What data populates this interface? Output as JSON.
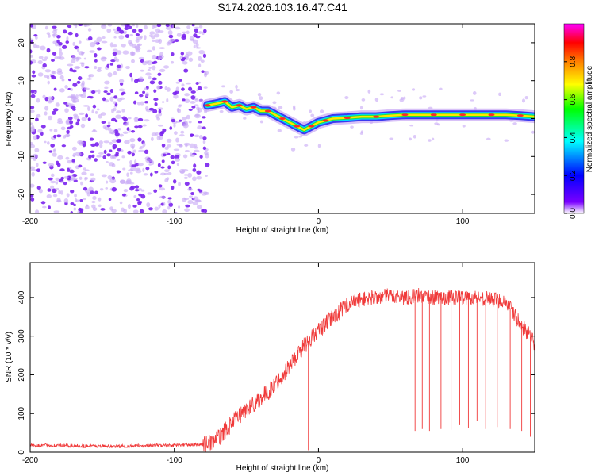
{
  "title": "S174.2026.103.16.47.C41",
  "colors": {
    "trace": "#f03a3a",
    "axis": "#000000",
    "speckle": "#7a22ee",
    "background": "#ffffff"
  },
  "chart_data": [
    {
      "type": "heatmap",
      "title": "",
      "xlabel": "Height of straight line (km)",
      "ylabel": "Frequency (Hz)",
      "xlim": [
        -200,
        150
      ],
      "ylim": [
        -25,
        25
      ],
      "xticks": [
        -200,
        -100,
        0,
        100
      ],
      "xtick_labels": [
        "-200",
        "-100",
        "0",
        "100"
      ],
      "yticks": [
        -20,
        -10,
        0,
        10,
        20
      ],
      "ytick_labels": [
        "-20",
        "-10",
        "0",
        "10",
        "20"
      ],
      "noise_region_x": [
        -200,
        -77
      ],
      "ridge": {
        "name": "frequency ridge",
        "x": [
          -77,
          -70,
          -65,
          -60,
          -55,
          -50,
          -45,
          -40,
          -35,
          -30,
          -25,
          -20,
          -15,
          -10,
          -5,
          0,
          5,
          10,
          20,
          30,
          40,
          50,
          60,
          70,
          80,
          90,
          100,
          110,
          120,
          130,
          140,
          150
        ],
        "freq": [
          3.5,
          4.0,
          4.5,
          3.0,
          3.5,
          2.5,
          3.0,
          2.0,
          2.0,
          1.0,
          0.0,
          -1.0,
          -2.0,
          -3.0,
          -2.0,
          -1.0,
          -0.5,
          0.0,
          0.2,
          0.5,
          0.5,
          0.8,
          1.0,
          1.0,
          1.0,
          1.0,
          1.0,
          1.0,
          1.0,
          1.0,
          0.8,
          0.5
        ]
      },
      "colorbar": {
        "label": "Normalized spectral amplitude",
        "range": [
          0,
          1
        ],
        "ticks": [
          0.0,
          0.2,
          0.4,
          0.6,
          0.8
        ],
        "tick_labels": [
          "0.0",
          "0.2",
          "0.4",
          "0.6",
          "0.8"
        ],
        "gradient": [
          "#ffffff",
          "#7a00ff",
          "#0000ff",
          "#00ffff",
          "#00ff00",
          "#ffff00",
          "#ff8000",
          "#ff0000",
          "#ff00ff"
        ]
      }
    },
    {
      "type": "line",
      "title": "",
      "xlabel": "Height of straight line (km)",
      "ylabel": "SNR (10 * v/v)",
      "xlim": [
        -200,
        150
      ],
      "ylim": [
        0,
        490
      ],
      "xticks": [
        -200,
        -100,
        0,
        100
      ],
      "xtick_labels": [
        "-200",
        "-100",
        "0",
        "100"
      ],
      "yticks": [
        0,
        100,
        200,
        300,
        400
      ],
      "ytick_labels": [
        "0",
        "100",
        "200",
        "300",
        "400"
      ],
      "series": [
        {
          "name": "SNR",
          "x": [
            -200,
            -180,
            -160,
            -140,
            -120,
            -100,
            -90,
            -80,
            -75,
            -70,
            -65,
            -60,
            -55,
            -50,
            -45,
            -40,
            -35,
            -30,
            -25,
            -20,
            -15,
            -10,
            -5,
            0,
            5,
            10,
            15,
            20,
            25,
            30,
            40,
            50,
            60,
            70,
            80,
            90,
            100,
            110,
            120,
            130,
            135,
            140,
            145,
            150
          ],
          "snr": [
            18,
            17,
            16,
            15,
            17,
            18,
            19,
            20,
            25,
            35,
            55,
            75,
            95,
            110,
            125,
            140,
            155,
            175,
            200,
            225,
            250,
            275,
            295,
            315,
            330,
            350,
            365,
            380,
            390,
            395,
            400,
            405,
            400,
            405,
            400,
            400,
            400,
            400,
            395,
            390,
            360,
            330,
            310,
            280
          ]
        }
      ],
      "dropouts": [
        {
          "x": 67,
          "snr": 55
        },
        {
          "x": 72,
          "snr": 60
        },
        {
          "x": 77,
          "snr": 55
        },
        {
          "x": 85,
          "snr": 60
        },
        {
          "x": 92,
          "snr": 58
        },
        {
          "x": 98,
          "snr": 70
        },
        {
          "x": 104,
          "snr": 62
        },
        {
          "x": 110,
          "snr": 80
        },
        {
          "x": 116,
          "snr": 60
        },
        {
          "x": 124,
          "snr": 65
        },
        {
          "x": 133,
          "snr": 60
        },
        {
          "x": 141,
          "snr": 55
        },
        {
          "x": 147,
          "snr": 40
        },
        {
          "x": -7,
          "snr": 5
        }
      ]
    }
  ]
}
